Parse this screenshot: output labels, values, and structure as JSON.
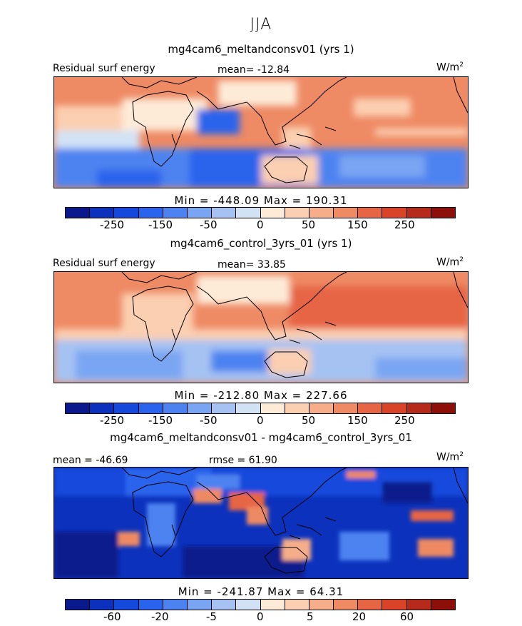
{
  "season": "JJA",
  "panels": [
    {
      "title": "mg4cam6_meltandconsv01 (yrs 1)",
      "left_label": "Residual surf energy",
      "center_label": "mean=  -12.84",
      "units": "W/m",
      "units_sup": "2",
      "minmax": "Min  =  -448.09  Max  =  190.31",
      "colorbar_ticks": [
        "-250",
        "-150",
        "-50",
        "0",
        "50",
        "150",
        "250"
      ]
    },
    {
      "title": "mg4cam6_control_3yrs_01 (yrs 1)",
      "left_label": "Residual surf energy",
      "center_label": "mean=  33.85",
      "units": "W/m",
      "units_sup": "2",
      "minmax": "Min  =  -212.80  Max  =  227.66",
      "colorbar_ticks": [
        "-250",
        "-150",
        "-50",
        "0",
        "50",
        "150",
        "250"
      ]
    },
    {
      "title": "mg4cam6_meltandconsv01 - mg4cam6_control_3yrs_01",
      "left_label": "mean = -46.69",
      "center_label": "rmse =  61.90",
      "units": "W/m",
      "units_sup": "2",
      "minmax": "Min  =  -241.87  Max  =   64.31",
      "colorbar_ticks": [
        "-60",
        "-20",
        "-5",
        "0",
        "5",
        "20",
        "60"
      ]
    }
  ],
  "colors": {
    "palette": [
      "#0a1a8c",
      "#0c32bd",
      "#1549dc",
      "#2a63ec",
      "#4d83f0",
      "#7aa5f2",
      "#a6c2f2",
      "#d2e2f5",
      "#fdebd8",
      "#fbcfb1",
      "#f5ad8a",
      "#ee8a64",
      "#e66544",
      "#d94328",
      "#b52a1a",
      "#8c0f0a"
    ]
  },
  "chart_data": [
    {
      "type": "heatmap",
      "title": "mg4cam6_meltandconsv01 (yrs 1)",
      "variable": "Residual surf energy",
      "units": "W/m2",
      "mean": -12.84,
      "min": -448.09,
      "max": 190.31,
      "colorbar_levels": [
        -350,
        -300,
        -250,
        -200,
        -150,
        -100,
        -50,
        -25,
        0,
        25,
        50,
        100,
        150,
        200,
        250,
        300,
        350
      ],
      "colorbar_tick_labels": [
        -250,
        -150,
        -50,
        0,
        50,
        150,
        250
      ]
    },
    {
      "type": "heatmap",
      "title": "mg4cam6_control_3yrs_01 (yrs 1)",
      "variable": "Residual surf energy",
      "units": "W/m2",
      "mean": 33.85,
      "min": -212.8,
      "max": 227.66,
      "colorbar_levels": [
        -350,
        -300,
        -250,
        -200,
        -150,
        -100,
        -50,
        -25,
        0,
        25,
        50,
        100,
        150,
        200,
        250,
        300,
        350
      ],
      "colorbar_tick_labels": [
        -250,
        -150,
        -50,
        0,
        50,
        150,
        250
      ]
    },
    {
      "type": "heatmap",
      "title": "mg4cam6_meltandconsv01 - mg4cam6_control_3yrs_01",
      "units": "W/m2",
      "mean": -46.69,
      "rmse": 61.9,
      "min": -241.87,
      "max": 64.31,
      "colorbar_levels": [
        -80,
        -60,
        -40,
        -20,
        -10,
        -5,
        -2,
        0,
        2,
        5,
        10,
        20,
        40,
        60,
        80
      ],
      "colorbar_tick_labels": [
        -60,
        -20,
        -5,
        0,
        5,
        20,
        60
      ]
    }
  ]
}
